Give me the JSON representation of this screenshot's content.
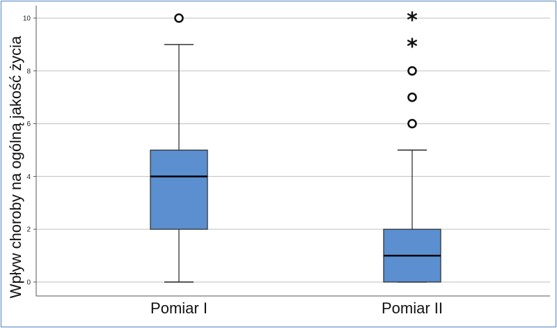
{
  "chart_data": {
    "type": "box",
    "ylabel": "Wpływ choroby na ogólną jakość życia",
    "xlabel": "",
    "ylim": [
      0,
      10
    ],
    "yticks": [
      "0",
      "2",
      "4",
      "6",
      "8",
      "10"
    ],
    "grid": true,
    "categories": [
      "Pomiar I",
      "Pomiar II"
    ],
    "boxes": [
      {
        "name": "Pomiar I",
        "whisker_low": 0,
        "q1": 2,
        "median": 4,
        "q3": 5,
        "whisker_high": 9,
        "outliers": [
          10
        ],
        "extremes": []
      },
      {
        "name": "Pomiar II",
        "whisker_low": 0,
        "q1": 0,
        "median": 1,
        "q3": 2,
        "whisker_high": 5,
        "outliers": [
          6,
          7,
          8
        ],
        "extremes": [
          9,
          10
        ]
      }
    ],
    "colors": {
      "box_fill": "#5b8fcf",
      "box_stroke": "#2b2b2b",
      "grid": "#c9c9c9",
      "axis": "#555555",
      "frame": "#4f81bd"
    }
  }
}
